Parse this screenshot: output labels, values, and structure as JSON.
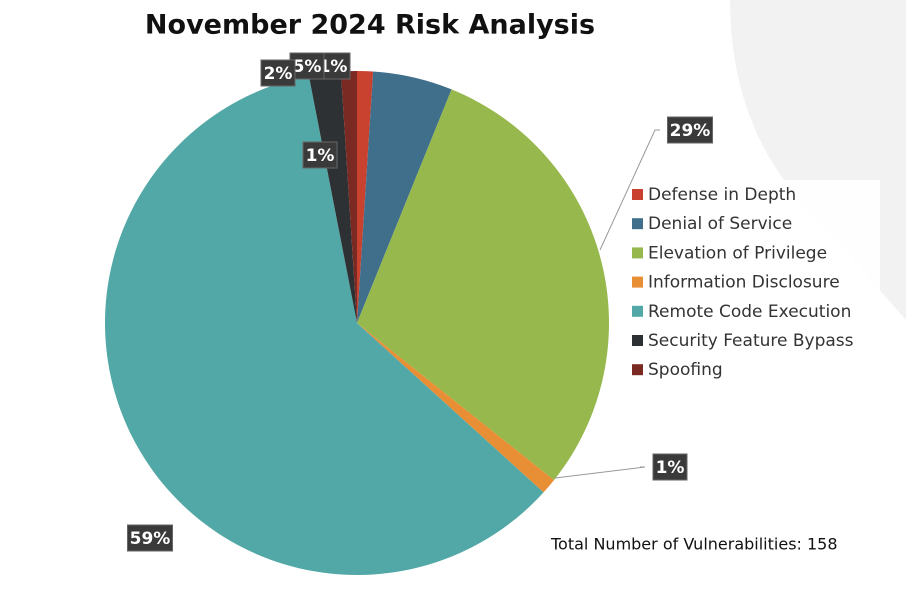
{
  "chart_data": {
    "type": "pie",
    "title": "November 2024 Risk Analysis",
    "categories": [
      "Defense in Depth",
      "Denial of Service",
      "Elevation of Privilege",
      "Information Disclosure",
      "Remote Code Execution",
      "Security Feature Bypass",
      "Spoofing"
    ],
    "values": [
      1,
      5,
      29,
      1,
      59,
      2,
      1
    ],
    "value_labels": [
      "1%",
      "5%",
      "29%",
      "1%",
      "59%",
      "2%",
      "1%"
    ],
    "colors": [
      "#c9412f",
      "#3f6f8a",
      "#97b84d",
      "#e88e35",
      "#52a8a6",
      "#2e3134",
      "#7a2a22"
    ],
    "legend": "right",
    "annotation": "Total Number of Vulnerabilities: 158"
  }
}
